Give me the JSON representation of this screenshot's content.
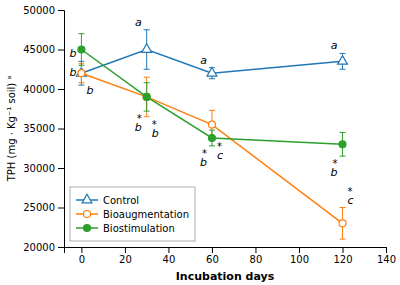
{
  "chart_data": {
    "type": "line",
    "x": [
      0,
      30,
      60,
      120
    ],
    "xlabel": "Incubation days",
    "ylabel": "TPH (mg · Kg⁻¹ soil) ᵃ",
    "xlim": [
      -8,
      140
    ],
    "xticks": [
      0,
      20,
      40,
      60,
      80,
      100,
      120,
      140
    ],
    "ylim": [
      20000,
      50000
    ],
    "yticks": [
      20000,
      25000,
      30000,
      35000,
      40000,
      45000,
      50000
    ],
    "legend": "lower left",
    "series": [
      {
        "name": "Control",
        "marker": "triangle-open",
        "values": [
          42000,
          45000,
          42000,
          43500
        ],
        "errors": [
          1500,
          2500,
          700,
          1000
        ],
        "annotations": [
          "b",
          "a",
          "a",
          "a"
        ]
      },
      {
        "name": "Bioaugmentation",
        "marker": "circle-open",
        "values": [
          42000,
          39000,
          35500,
          23000
        ],
        "errors": [
          1200,
          2500,
          1800,
          2000
        ],
        "annotations": [
          "b",
          "b",
          "c",
          "c"
        ],
        "stars": [
          null,
          "*",
          "*",
          "*"
        ]
      },
      {
        "name": "Biostimulation",
        "marker": "circle",
        "values": [
          45000,
          39000,
          33800,
          33000
        ],
        "errors": [
          2000,
          1800,
          1000,
          1500
        ],
        "annotations": [
          "b",
          "b",
          "b",
          "b"
        ],
        "stars": [
          null,
          "*",
          "*",
          "*"
        ]
      }
    ]
  }
}
